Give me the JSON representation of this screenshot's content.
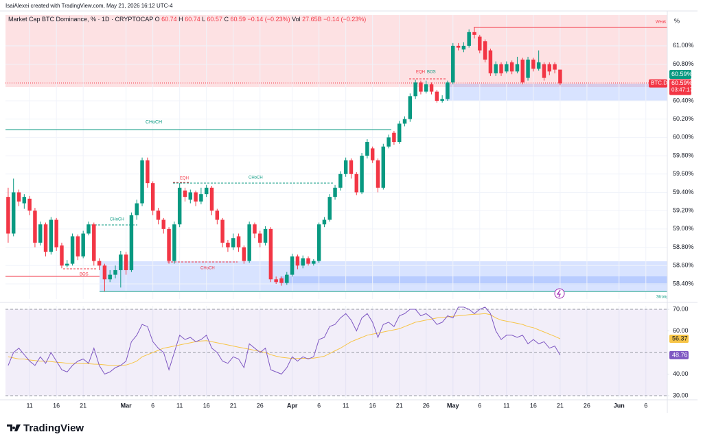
{
  "header": {
    "credit": "IsaiAlexei created with TradingView.com, May 21, 2026 16:12 UTC-4",
    "symbol": "Market Cap BTC Dominance, % · 1D · CRYPTOCAP",
    "ohlc": [
      {
        "k": "O",
        "v": 60.74
      },
      {
        "k": "H",
        "v": 60.74
      },
      {
        "k": "L",
        "v": 60.57
      },
      {
        "k": "C",
        "v": 60.59
      }
    ],
    "change": "−0.14 (−0.23%)",
    "vol_label": "Vol",
    "vol": "27.65B",
    "vol_change": "−0.14 (−0.23%)",
    "logo": "TradingView"
  },
  "annotations": [
    "Weak High",
    "CHoCH",
    "EQH",
    "BOS",
    "CHoCH",
    "EQH",
    "CHoCH",
    "CHoCH",
    "BOS",
    "Strong Low"
  ],
  "chart_data": [
    {
      "type": "candlestick",
      "up_color": "#089981",
      "down_color": "#f23645",
      "grid": true,
      "unit": "%",
      "last_label": "60.59%",
      "symbol_tag": "BTC.D",
      "countdown": "03:47:17",
      "xlim": [
        -0.5,
        123
      ],
      "ylim": [
        58.235,
        61.336
      ],
      "xticks": [
        {
          "value": 4,
          "label": "11"
        },
        {
          "value": 9,
          "label": "16"
        },
        {
          "value": 14,
          "label": "21"
        },
        {
          "value": 22,
          "label": "Mar"
        },
        {
          "value": 27,
          "label": "6"
        },
        {
          "value": 32,
          "label": "11"
        },
        {
          "value": 37,
          "label": "16"
        },
        {
          "value": 42,
          "label": "21"
        },
        {
          "value": 47,
          "label": "26"
        },
        {
          "value": 53,
          "label": "Apr"
        },
        {
          "value": 58,
          "label": "6"
        },
        {
          "value": 63,
          "label": "11"
        },
        {
          "value": 68,
          "label": "16"
        },
        {
          "value": 73,
          "label": "21"
        },
        {
          "value": 78,
          "label": "26"
        },
        {
          "value": 83,
          "label": "May"
        },
        {
          "value": 88,
          "label": "6"
        },
        {
          "value": 93,
          "label": "11"
        },
        {
          "value": 98,
          "label": "16"
        },
        {
          "value": 103,
          "label": "21"
        },
        {
          "value": 108,
          "label": "26"
        },
        {
          "value": 114,
          "label": "Jun"
        },
        {
          "value": 119,
          "label": "6"
        }
      ],
      "yticks": [
        {
          "value": 58.4,
          "label": "58.40%"
        },
        {
          "value": 58.6,
          "label": "58.60%"
        },
        {
          "value": 58.8,
          "label": "58.80%"
        },
        {
          "value": 59,
          "label": "59.00%"
        },
        {
          "value": 59.2,
          "label": "59.20%"
        },
        {
          "value": 59.4,
          "label": "59.40%"
        },
        {
          "value": 59.6,
          "label": "59.60%"
        },
        {
          "value": 59.8,
          "label": "59.80%"
        },
        {
          "value": 60,
          "label": "60.00%"
        },
        {
          "value": 60.2,
          "label": "60.20%"
        },
        {
          "value": 60.4,
          "label": "60.40%"
        },
        {
          "value": 60.8,
          "label": "60.80%"
        },
        {
          "value": 61,
          "label": "61.00%"
        }
      ],
      "open": [
        59.35,
        58.95,
        59.4,
        59.28,
        59.33,
        59.2,
        58.85,
        59.05,
        58.75,
        59.1,
        58.82,
        58.6,
        58.62,
        58.92,
        58.7,
        58.95,
        59.05,
        58.65,
        58.6,
        58.45,
        58.5,
        58.55,
        58.72,
        58.55,
        59.15,
        59.28,
        59.75,
        59.5,
        59.2,
        59.1,
        59.0,
        58.65,
        59.05,
        59.42,
        59.32,
        59.4,
        59.3,
        59.38,
        59.45,
        59.2,
        59.1,
        58.85,
        58.8,
        58.92,
        58.8,
        58.65,
        59.05,
        58.95,
        58.85,
        59.0,
        58.45,
        58.46,
        58.41,
        58.5,
        58.7,
        58.6,
        58.68,
        58.62,
        58.65,
        59.05,
        59.1,
        59.35,
        59.45,
        59.6,
        59.75,
        59.6,
        59.4,
        59.8,
        59.88,
        59.75,
        59.45,
        59.9,
        60.05,
        59.95,
        60.15,
        60.2,
        60.45,
        60.6,
        60.5,
        60.58,
        60.5,
        60.4,
        60.42,
        60.6,
        61.0,
        60.96,
        61.0,
        61.15,
        61.1,
        61.05,
        60.95,
        60.7,
        60.8,
        60.72,
        60.82,
        60.72,
        60.85,
        60.65,
        60.85,
        60.75,
        60.8,
        60.8,
        60.8,
        60.74
      ],
      "high": [
        59.45,
        59.55,
        59.43,
        59.38,
        59.36,
        59.23,
        59.08,
        59.07,
        59.13,
        59.12,
        58.85,
        58.66,
        58.95,
        58.94,
        58.98,
        59.08,
        59.07,
        58.68,
        58.62,
        58.55,
        58.6,
        58.76,
        58.75,
        59.18,
        59.32,
        59.78,
        59.78,
        59.52,
        59.23,
        59.12,
        59.02,
        59.08,
        59.5,
        59.45,
        59.43,
        59.42,
        59.45,
        59.48,
        59.47,
        59.22,
        59.12,
        58.88,
        58.95,
        58.95,
        58.82,
        59.08,
        59.07,
        58.98,
        59.03,
        59.02,
        58.48,
        58.48,
        58.53,
        58.73,
        58.72,
        58.71,
        58.7,
        58.67,
        59.07,
        59.13,
        59.38,
        59.48,
        59.63,
        59.78,
        59.77,
        59.62,
        59.83,
        59.98,
        59.9,
        59.77,
        59.93,
        60.03,
        60.07,
        60.18,
        60.23,
        60.48,
        60.63,
        60.62,
        60.62,
        60.6,
        60.52,
        60.46,
        60.62,
        61.03,
        61.03,
        61.04,
        61.18,
        61.2,
        61.12,
        61.07,
        60.97,
        60.83,
        60.82,
        60.83,
        60.84,
        60.88,
        60.87,
        60.88,
        60.87,
        60.95,
        60.82,
        60.82,
        60.82,
        60.74
      ],
      "low": [
        58.85,
        58.92,
        59.25,
        59.22,
        59.15,
        58.8,
        58.82,
        58.7,
        58.72,
        58.76,
        58.57,
        58.58,
        58.6,
        58.66,
        58.68,
        58.93,
        58.6,
        58.55,
        58.32,
        58.42,
        58.46,
        58.36,
        58.5,
        58.53,
        59.1,
        59.25,
        59.45,
        59.15,
        59.05,
        58.95,
        58.62,
        58.62,
        59.02,
        59.3,
        59.28,
        59.25,
        59.27,
        59.35,
        59.15,
        59.05,
        58.8,
        58.75,
        58.77,
        58.75,
        58.62,
        58.63,
        58.9,
        58.8,
        58.82,
        58.42,
        58.4,
        58.38,
        58.39,
        58.48,
        58.56,
        58.57,
        58.6,
        58.6,
        58.63,
        59.02,
        59.08,
        59.32,
        59.42,
        59.57,
        59.55,
        59.37,
        59.38,
        59.77,
        59.72,
        59.4,
        59.43,
        59.88,
        59.92,
        59.93,
        60.12,
        60.17,
        60.42,
        60.47,
        60.48,
        60.47,
        60.38,
        60.38,
        60.4,
        60.58,
        60.95,
        60.93,
        60.98,
        61.08,
        60.92,
        60.82,
        60.67,
        60.67,
        60.67,
        60.7,
        60.69,
        60.7,
        60.58,
        60.62,
        60.72,
        60.73,
        60.62,
        60.68,
        60.7,
        60.57
      ],
      "close": [
        58.95,
        59.4,
        59.3,
        59.35,
        59.2,
        58.85,
        59.05,
        58.75,
        59.1,
        58.8,
        58.6,
        58.62,
        58.92,
        58.7,
        58.95,
        59.05,
        58.65,
        58.6,
        58.45,
        58.5,
        58.55,
        58.72,
        58.55,
        59.15,
        59.28,
        59.75,
        59.5,
        59.2,
        59.1,
        59.0,
        58.65,
        59.05,
        59.45,
        59.35,
        59.4,
        59.3,
        59.38,
        59.45,
        59.2,
        59.1,
        58.85,
        58.8,
        58.9,
        58.8,
        58.65,
        59.05,
        58.95,
        58.85,
        59.0,
        58.45,
        58.42,
        58.41,
        58.5,
        58.7,
        58.6,
        58.68,
        58.62,
        58.65,
        59.05,
        59.1,
        59.35,
        59.45,
        59.6,
        59.75,
        59.6,
        59.4,
        59.8,
        59.95,
        59.75,
        59.45,
        59.9,
        60.0,
        59.95,
        60.15,
        60.2,
        60.45,
        60.6,
        60.5,
        60.58,
        60.5,
        60.4,
        60.42,
        60.6,
        61.0,
        60.98,
        61.0,
        61.15,
        61.12,
        60.95,
        60.85,
        60.7,
        60.8,
        60.7,
        60.8,
        60.72,
        60.8,
        60.6,
        60.85,
        60.75,
        60.82,
        60.65,
        60.72,
        60.74,
        60.59
      ]
    },
    {
      "type": "line",
      "ylim": [
        29.05,
        71.6
      ],
      "levels": [
        70,
        50,
        30
      ],
      "yticks": [
        {
          "value": 30,
          "label": "30.00"
        },
        {
          "value": 40,
          "label": "40.00"
        },
        {
          "value": 60,
          "label": "60.00"
        },
        {
          "value": 70,
          "label": "70.00"
        }
      ],
      "series": [
        {
          "color": "#7e57c2",
          "values": [
            44,
            50,
            52,
            49,
            46,
            44,
            48,
            45,
            50,
            46,
            42,
            41,
            44,
            46,
            47,
            45,
            52,
            44,
            40,
            41,
            43,
            44,
            46,
            55,
            58,
            63,
            62,
            55,
            52,
            50,
            42,
            50,
            58,
            56,
            57,
            55,
            56,
            58,
            52,
            50,
            46,
            45,
            48,
            47,
            43,
            54,
            52,
            50,
            52,
            42,
            41,
            40,
            43,
            48,
            46,
            48,
            47,
            48,
            56,
            57,
            62,
            63,
            66,
            68,
            65,
            60,
            66,
            68,
            64,
            57,
            63,
            64,
            62,
            67,
            68,
            70,
            70,
            67,
            68,
            66,
            63,
            64,
            67,
            66,
            71,
            71,
            70,
            68,
            70,
            71,
            68,
            60,
            56,
            58,
            58,
            57,
            58,
            54,
            56,
            54,
            55,
            52,
            53,
            48.76
          ]
        },
        {
          "color": "#f7c548",
          "values": [
            48,
            47.5,
            47,
            47,
            46.5,
            46.3,
            46,
            46,
            45.8,
            45.5,
            45.3,
            45,
            45,
            45,
            44.8,
            44.8,
            44.6,
            44.5,
            44.3,
            44,
            44,
            44,
            44.2,
            45,
            46,
            48,
            49,
            50,
            51,
            52,
            52.5,
            53,
            53.5,
            54,
            54.5,
            55,
            55.3,
            55.5,
            55,
            54.5,
            54,
            53.5,
            53,
            52.5,
            52,
            51.5,
            51,
            50.5,
            50,
            49,
            48.3,
            47.8,
            47.5,
            47.2,
            47.2,
            47.3,
            47.3,
            47.4,
            47.8,
            48.3,
            49.5,
            50.8,
            52,
            53.5,
            55,
            56,
            57,
            58,
            58.5,
            59,
            59.5,
            60,
            60.5,
            61,
            62,
            63,
            64,
            64.5,
            65,
            65.5,
            66,
            66.2,
            66.5,
            66.8,
            67,
            67.2,
            67.5,
            67.7,
            67.8,
            68,
            67.5,
            66,
            65,
            64.5,
            64,
            63.5,
            63,
            62,
            61.5,
            60.5,
            59.5,
            58.5,
            57.5,
            56.37
          ]
        }
      ]
    }
  ]
}
